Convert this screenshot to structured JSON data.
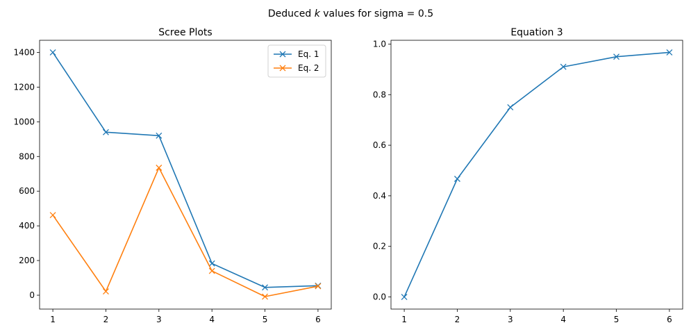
{
  "suptitle": {
    "prefix": "Deduced ",
    "k": "k",
    "suffix": " values for sigma = 0.5"
  },
  "colors": {
    "blue": "#1f77b4",
    "orange": "#ff7f0e"
  },
  "chart_data": [
    {
      "type": "line",
      "title": "Scree Plots",
      "x": [
        1,
        2,
        3,
        4,
        5,
        6
      ],
      "xticks": [
        1,
        2,
        3,
        4,
        5,
        6
      ],
      "xlim": [
        0.75,
        6.25
      ],
      "ylim": [
        -80,
        1470
      ],
      "yticks": [
        0,
        200,
        400,
        600,
        800,
        1000,
        1200,
        1400
      ],
      "legend": "top-right",
      "series": [
        {
          "name": "Eq. 1",
          "color": "#1f77b4",
          "values": [
            1400,
            940,
            920,
            183,
            45,
            55
          ]
        },
        {
          "name": "Eq. 2",
          "color": "#ff7f0e",
          "values": [
            462,
            22,
            735,
            140,
            -8,
            52
          ]
        }
      ]
    },
    {
      "type": "line",
      "title": "Equation 3",
      "x": [
        1,
        2,
        3,
        4,
        5,
        6
      ],
      "xticks": [
        1,
        2,
        3,
        4,
        5,
        6
      ],
      "xlim": [
        0.75,
        6.25
      ],
      "ylim": [
        -0.048,
        1.015
      ],
      "yticks": [
        "0.0",
        "0.2",
        "0.4",
        "0.6",
        "0.8",
        "1.0"
      ],
      "series": [
        {
          "color": "#1f77b4",
          "values": [
            0.0,
            0.467,
            0.75,
            0.91,
            0.95,
            0.967
          ]
        }
      ]
    }
  ]
}
